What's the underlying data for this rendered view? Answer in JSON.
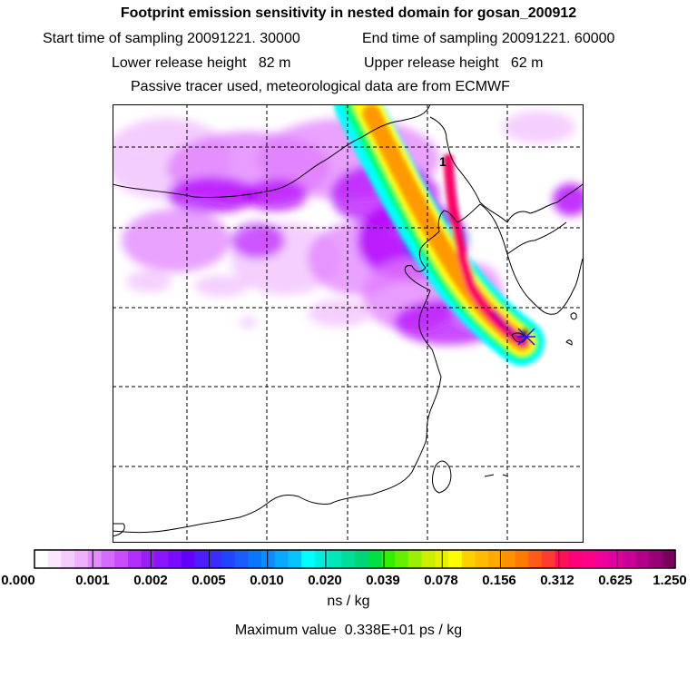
{
  "header": {
    "title": "Footprint emission sensitivity in nested domain for gosan_200912",
    "start_label": "Start time of sampling 20091221. 30000",
    "end_label": "End time of sampling 20091221. 60000",
    "lower_height_label": "Lower release height   82 m",
    "upper_height_label": "Upper release height   62 m",
    "tracer_label": "Passive tracer used, meteorological data are from ECMWF"
  },
  "map": {
    "marker_label": "1",
    "gridlines": "dashed",
    "plume_colors": [
      "#00ffff",
      "#00ff66",
      "#ffff00",
      "#ff9900",
      "#ff0066",
      "#cc0099",
      "#660033"
    ],
    "sensitivity_colors": [
      "#f2c4ff",
      "#e07bff",
      "#b300ff",
      "#8a1cff",
      "#3c3cff",
      "#0b86ff"
    ]
  },
  "colorbar": {
    "tick_labels": [
      "0.000",
      "0.001",
      "0.002",
      "0.005",
      "0.010",
      "0.020",
      "0.039",
      "0.078",
      "0.156",
      "0.312",
      "0.625",
      "1.250"
    ],
    "segment_colors": [
      "#ffffff",
      "#fbe6ff",
      "#f6ccff",
      "#efb0ff",
      "#e38cff",
      "#d66bff",
      "#c94cff",
      "#b22eff",
      "#9b1ef2",
      "#8c14ff",
      "#7a0bff",
      "#6200ff",
      "#4d1cff",
      "#3a2cff",
      "#2244ff",
      "#1a5cff",
      "#0a76ff",
      "#0a8eff",
      "#08aaff",
      "#05c4ff",
      "#00ffff",
      "#00eedd",
      "#00e6bb",
      "#00dd99",
      "#00d677",
      "#00e044",
      "#33ee00",
      "#66f000",
      "#99f000",
      "#ccee00",
      "#e6f000",
      "#ffff00",
      "#ffd000",
      "#ffbb00",
      "#ffaa00",
      "#ff9200",
      "#ff7a00",
      "#ff5a1a",
      "#ff3a33",
      "#ff1155",
      "#ff007a",
      "#ff0088",
      "#f2009a",
      "#e000a0",
      "#cc0099",
      "#b3008a",
      "#990077",
      "#770060"
    ],
    "units_label": "ns / kg",
    "max_label": "Maximum value  0.338E+01 ps / kg"
  }
}
